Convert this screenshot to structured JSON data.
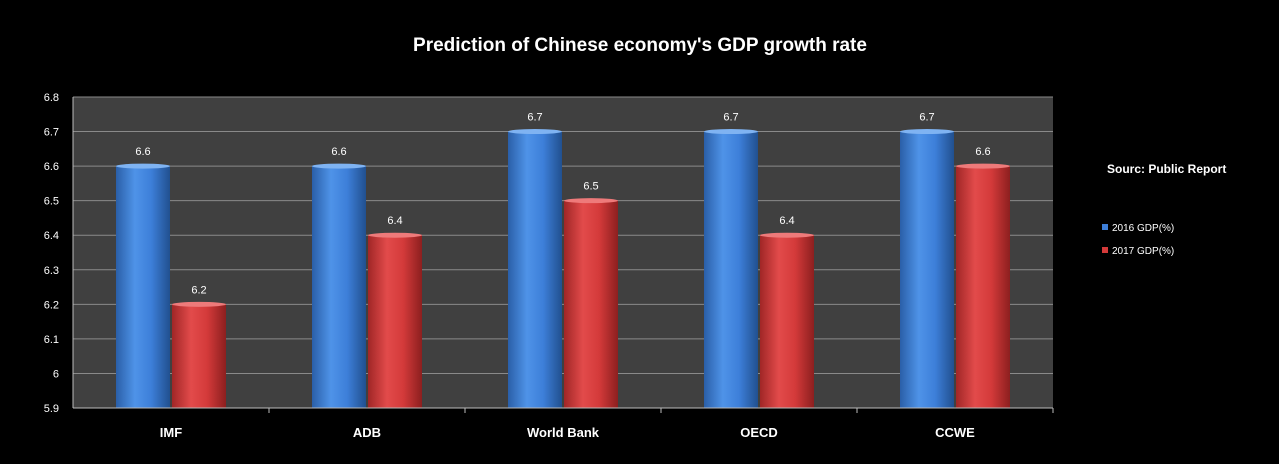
{
  "chart_data": {
    "type": "bar",
    "title": "Prediction of Chinese economy's GDP growth rate",
    "xlabel": "",
    "ylabel": "",
    "categories": [
      "IMF",
      "ADB",
      "World Bank",
      "OECD",
      "CCWE"
    ],
    "series": [
      {
        "name": "2016 GDP(%)",
        "values": [
          6.6,
          6.6,
          6.7,
          6.7,
          6.7
        ],
        "color": "#3d7fd9"
      },
      {
        "name": "2017 GDP(%)",
        "values": [
          6.2,
          6.4,
          6.5,
          6.4,
          6.6
        ],
        "color": "#d43a3a"
      }
    ],
    "ylim": [
      5.9,
      6.8
    ],
    "yticks": [
      "5.9",
      "6",
      "6.1",
      "6.2",
      "6.3",
      "6.4",
      "6.5",
      "6.6",
      "6.7",
      "6.8"
    ],
    "grid": true,
    "legend": "right",
    "source": "Sourc: Public Report",
    "plot_background": "#404040",
    "gridline_color": "#8a8a8a",
    "background": "#000000"
  }
}
